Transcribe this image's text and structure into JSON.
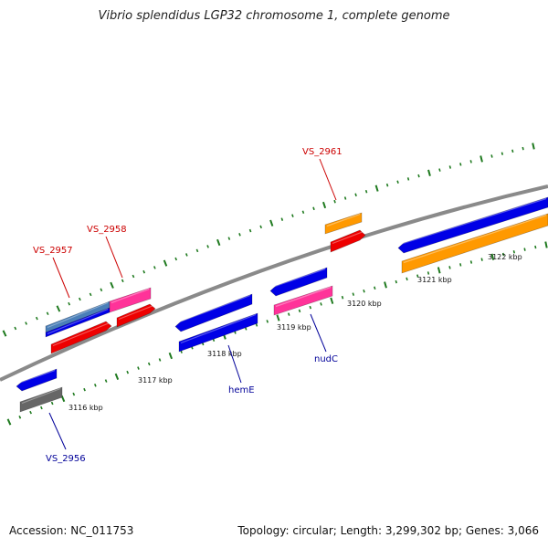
{
  "title": "Vibrio splendidus LGP32 chromosome 1, complete genome",
  "accession": "Accession: NC_011753",
  "summary": "Topology: circular; Length: 3,299,302 bp; Genes: 3,066",
  "colors": {
    "backbone": "#8a8a8a",
    "tick": "#1f7a1f",
    "label_red": "#cc0000",
    "label_blue": "#000099",
    "blue": "#0000e6",
    "red": "#ee0000",
    "pink": "#ff3399",
    "orange": "#ff9900",
    "steel": "#4a7fb8",
    "gray": "#666666"
  },
  "scale_labels": [
    "3116 kbp",
    "3117 kbp",
    "3118 kbp",
    "3119 kbp",
    "3120 kbp",
    "3121 kbp",
    "3122 kbp"
  ],
  "gene_labels": [
    {
      "text": "VS_2957",
      "color": "red"
    },
    {
      "text": "VS_2958",
      "color": "red"
    },
    {
      "text": "VS_2961",
      "color": "red"
    },
    {
      "text": "VS_2956",
      "color": "blue"
    },
    {
      "text": "hemE",
      "color": "blue"
    },
    {
      "text": "nudC",
      "color": "blue"
    }
  ]
}
